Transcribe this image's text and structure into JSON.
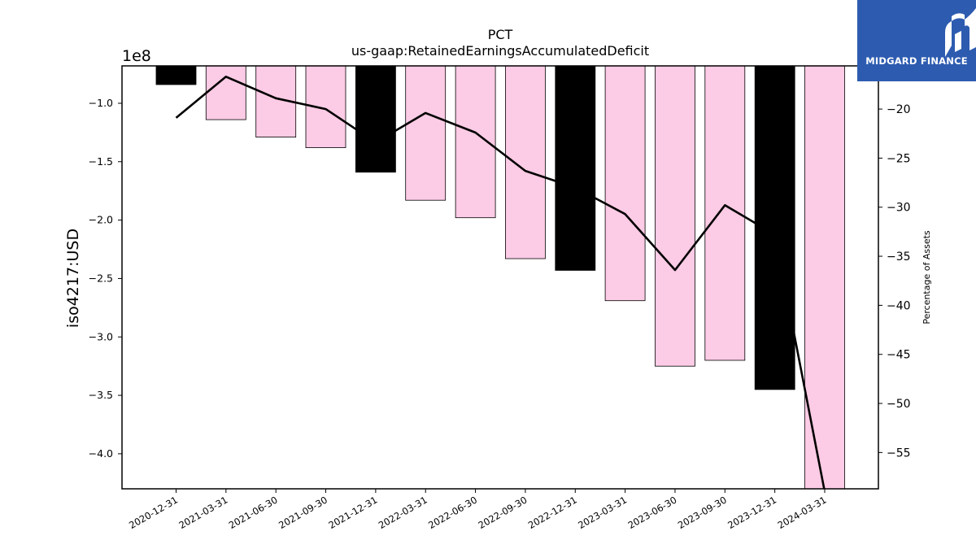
{
  "chart_data": {
    "type": "bar",
    "title": "PCT",
    "subtitle": "us-gaap:RetainedEarningsAccumulatedDeficit",
    "ylabel": "iso4217:USD",
    "y_offset_label": "1e8",
    "y2label": "Percentage of Assets",
    "categories": [
      "2020-12-31",
      "2021-03-31",
      "2021-06-30",
      "2021-09-30",
      "2021-12-31",
      "2022-03-31",
      "2022-06-30",
      "2022-09-30",
      "2022-12-31",
      "2023-03-31",
      "2023-06-30",
      "2023-09-30",
      "2023-12-31",
      "2024-03-31"
    ],
    "series": [
      {
        "kind": "bar",
        "axis": "left",
        "values": [
          -84000000,
          -114000000,
          -129000000,
          -138000000,
          -159000000,
          -183000000,
          -198000000,
          -233000000,
          -243000000,
          -269000000,
          -325000000,
          -320000000,
          -345000000,
          -435000000
        ],
        "colors": [
          "#000000",
          "#fccbe5",
          "#fccbe5",
          "#fccbe5",
          "#000000",
          "#fccbe5",
          "#fccbe5",
          "#fccbe5",
          "#000000",
          "#fccbe5",
          "#fccbe5",
          "#fccbe5",
          "#000000",
          "#fccbe5"
        ]
      },
      {
        "kind": "line",
        "axis": "right",
        "values": [
          -20.9,
          -16.7,
          -18.9,
          -20.0,
          -23.4,
          -20.4,
          -22.4,
          -26.3,
          -28.0,
          -30.7,
          -36.4,
          -29.8,
          -32.8,
          -59.0
        ],
        "color": "#000000"
      }
    ],
    "ylim": [
      -430000000,
      -68000000
    ],
    "yticks": [
      -100000000,
      -150000000,
      -200000000,
      -250000000,
      -300000000,
      -350000000,
      -400000000
    ],
    "ytick_labels": [
      "−1.0",
      "−1.5",
      "−2.0",
      "−2.5",
      "−3.0",
      "−3.5",
      "−4.0"
    ],
    "y2lim": [
      -58.7,
      -15.6
    ],
    "y2ticks": [
      -20,
      -25,
      -30,
      -35,
      -40,
      -45,
      -50,
      -55
    ],
    "y2tick_labels": [
      "−20",
      "−25",
      "−30",
      "−35",
      "−40",
      "−45",
      "−50",
      "−55"
    ],
    "grid": false,
    "legend": "none"
  },
  "logo": {
    "text": "MIDGARD FINANCE",
    "bg": "#2d5bb0"
  }
}
